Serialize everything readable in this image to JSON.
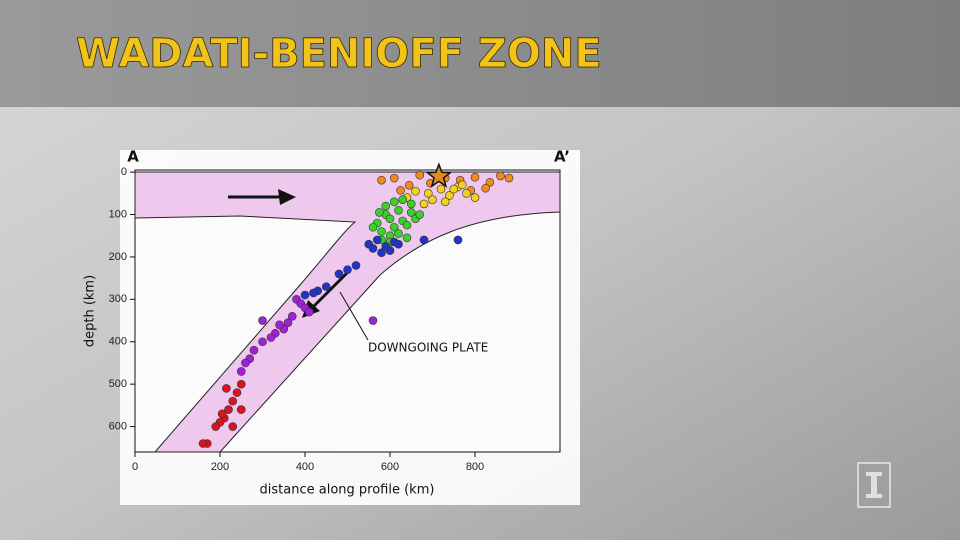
{
  "chart_data": {
    "type": "scatter",
    "title": "WADATI-BENIOFF ZONE",
    "xlabel": "distance along profile (km)",
    "ylabel": "depth (km)",
    "left_label": "A",
    "right_label": "A’",
    "annotation": "DOWNGOING PLATE",
    "xlim": [
      0,
      1000
    ],
    "ylim": [
      -5,
      660
    ],
    "y_inverted": true,
    "xticks": [
      0,
      200,
      400,
      600,
      800
    ],
    "yticks": [
      0,
      100,
      200,
      300,
      400,
      500,
      600
    ],
    "series": [
      {
        "color": "#f08a1e",
        "x": [
          580,
          610,
          645,
          670,
          730,
          765,
          800,
          835,
          860,
          880,
          790,
          825,
          695,
          625
        ],
        "y": [
          19,
          14,
          31,
          7,
          14,
          19,
          12,
          24,
          9,
          14,
          43,
          38,
          26,
          43
        ]
      },
      {
        "color": "#f3d21e",
        "x": [
          640,
          660,
          690,
          720,
          740,
          760,
          780,
          800,
          730,
          700,
          680,
          750,
          770
        ],
        "y": [
          60,
          45,
          50,
          40,
          55,
          35,
          50,
          60,
          70,
          65,
          75,
          40,
          30
        ]
      },
      {
        "color": "#39d12a",
        "x": [
          570,
          580,
          590,
          600,
          610,
          620,
          630,
          640,
          650,
          660,
          600,
          590,
          610,
          630,
          650,
          670,
          580,
          600,
          620,
          640,
          560,
          575
        ],
        "y": [
          120,
          140,
          100,
          110,
          130,
          90,
          115,
          125,
          95,
          110,
          150,
          80,
          70,
          65,
          75,
          100,
          160,
          165,
          145,
          155,
          130,
          95
        ]
      },
      {
        "color": "#2233c8",
        "x": [
          550,
          560,
          570,
          580,
          590,
          600,
          610,
          620,
          680,
          760,
          520,
          500,
          480,
          450,
          430,
          420,
          400
        ],
        "y": [
          170,
          180,
          160,
          190,
          175,
          185,
          165,
          170,
          160,
          160,
          220,
          230,
          240,
          270,
          280,
          285,
          290
        ]
      },
      {
        "color": "#a020d8",
        "x": [
          380,
          390,
          400,
          410,
          370,
          360,
          350,
          330,
          320,
          300,
          280,
          270,
          260,
          250,
          300,
          560,
          340
        ],
        "y": [
          300,
          310,
          320,
          330,
          340,
          355,
          370,
          380,
          390,
          400,
          420,
          440,
          450,
          470,
          350,
          350,
          360
        ]
      },
      {
        "color": "#d8141e",
        "x": [
          250,
          240,
          230,
          220,
          210,
          200,
          230,
          250,
          190,
          170,
          160,
          215,
          205
        ],
        "y": [
          500,
          520,
          540,
          560,
          580,
          590,
          600,
          560,
          600,
          640,
          640,
          510,
          570
        ]
      }
    ]
  }
}
